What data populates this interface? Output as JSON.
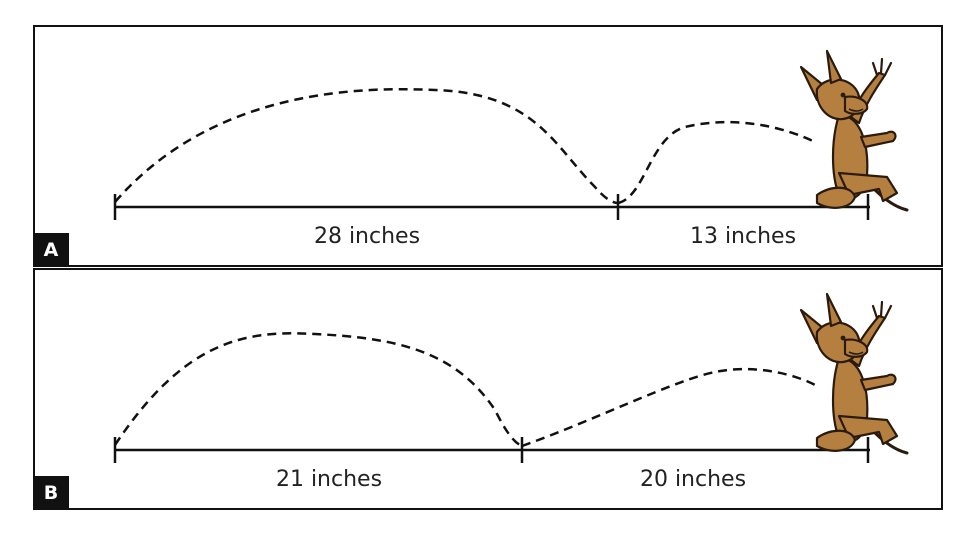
{
  "panels": [
    {
      "label": "A",
      "segments": [
        {
          "text": "28 inches",
          "value": 28,
          "unit": "inches"
        },
        {
          "text": "13 inches",
          "value": 13,
          "unit": "inches"
        }
      ]
    },
    {
      "label": "B",
      "segments": [
        {
          "text": "21 inches",
          "value": 21,
          "unit": "inches"
        },
        {
          "text": "20 inches",
          "value": 20,
          "unit": "inches"
        }
      ]
    }
  ],
  "figure": {
    "name": "kangaroo-icon",
    "body_color": "#b5803f",
    "outline_color": "#2b1b0e"
  }
}
